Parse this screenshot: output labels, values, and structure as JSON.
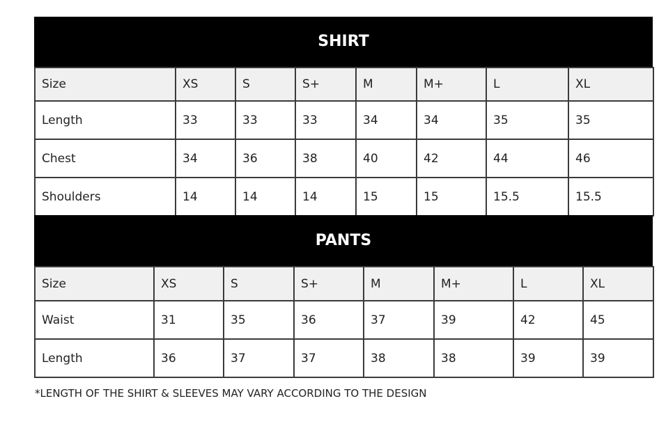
{
  "shirt": {
    "title": "SHIRT",
    "header": [
      "Size",
      "XS",
      "S",
      "S+",
      "M",
      "M+",
      "L",
      "XL"
    ],
    "rows": [
      [
        "Length",
        "33",
        "33",
        "33",
        "34",
        "34",
        "35",
        "35"
      ],
      [
        "Chest",
        "34",
        "36",
        "38",
        "40",
        "42",
        "44",
        "46"
      ],
      [
        "Shoulders",
        "14",
        "14",
        "14",
        "15",
        "15",
        "15.5",
        "15.5"
      ]
    ]
  },
  "pants": {
    "title": "PANTS",
    "header": [
      "Size",
      "XS",
      "S",
      "S+",
      "M",
      "M+",
      "L",
      "XL"
    ],
    "rows": [
      [
        "Waist",
        "31",
        "35",
        "36",
        "37",
        "39",
        "42",
        "45"
      ],
      [
        "Length",
        "36",
        "37",
        "37",
        "38",
        "38",
        "39",
        "39"
      ]
    ]
  },
  "note": "*LENGTH OF THE SHIRT & SLEEVES MAY VARY ACCORDING TO THE DESIGN",
  "colors": {
    "band": "#000000",
    "header_row": "#f0f0f0",
    "border": "#3a3a3a"
  }
}
